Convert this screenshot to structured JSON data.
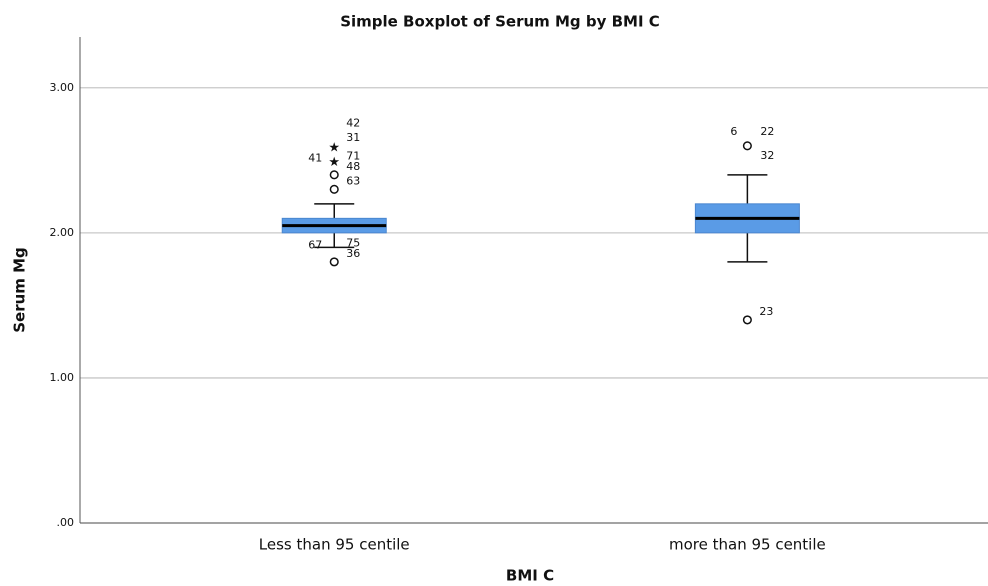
{
  "chart_data": {
    "type": "box",
    "title": "Simple Boxplot of Serum Mg by BMI  C",
    "xlabel": "BMI  C",
    "ylabel": "Serum Mg",
    "categories": [
      "Less than 95 centile",
      "more than 95 centile"
    ],
    "color": "#5a9be6",
    "ylim": [
      0,
      3.35
    ],
    "yticks": [
      {
        "value": 0,
        "label": ".00"
      },
      {
        "value": 1,
        "label": "1.00"
      },
      {
        "value": 2,
        "label": "2.00"
      },
      {
        "value": 3,
        "label": "3.00"
      }
    ],
    "grid": true,
    "boxes": [
      {
        "whisker_low": 1.9,
        "q1": 2.0,
        "median": 2.05,
        "q3": 2.1,
        "whisker_high": 2.2,
        "outliers": [
          {
            "value": 2.7,
            "marker": "none",
            "labels": [
              "42"
            ]
          },
          {
            "value": 2.6,
            "marker": "star",
            "labels": [
              "31"
            ]
          },
          {
            "value": 2.5,
            "marker": "star",
            "labels": [
              "41",
              "71"
            ]
          },
          {
            "value": 2.4,
            "marker": "circle",
            "labels": [
              "48"
            ]
          },
          {
            "value": 2.3,
            "marker": "circle",
            "labels": [
              "63"
            ]
          },
          {
            "value": 1.9,
            "marker": "none",
            "labels": [
              "67",
              "75"
            ]
          },
          {
            "value": 1.8,
            "marker": "circle",
            "labels": [
              "36"
            ]
          }
        ]
      },
      {
        "whisker_low": 1.8,
        "q1": 2.0,
        "median": 2.1,
        "q3": 2.2,
        "whisker_high": 2.4,
        "outliers": [
          {
            "value": 2.6,
            "marker": "circle",
            "labels": [
              "6",
              "22",
              "32"
            ]
          },
          {
            "value": 1.4,
            "marker": "circle",
            "labels": [
              "23"
            ]
          }
        ]
      }
    ]
  }
}
